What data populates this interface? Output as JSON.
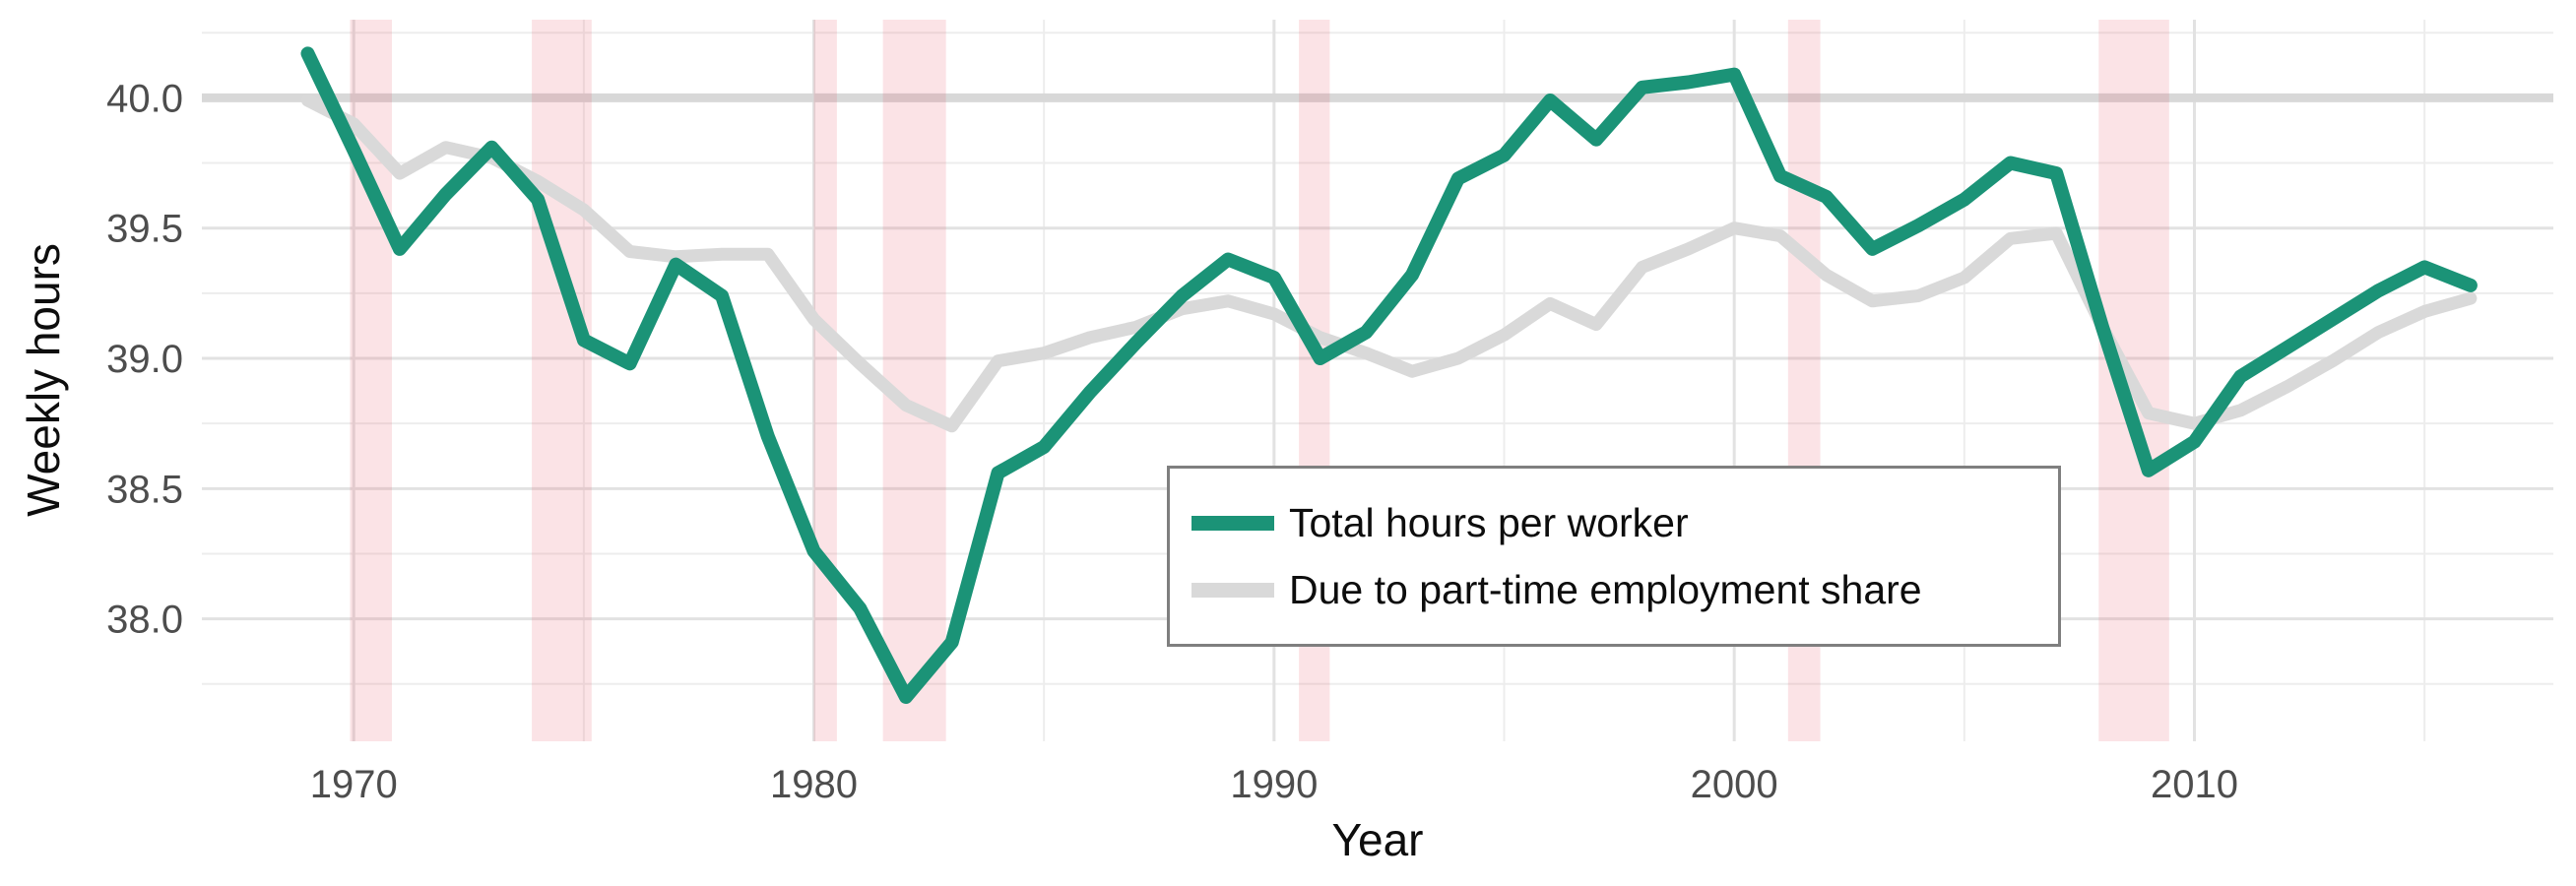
{
  "chart_data": {
    "type": "line",
    "title": "",
    "xlabel": "Year",
    "ylabel": "Weekly hours",
    "grid": "on",
    "background_color": "#ffffff",
    "x_domain": [
      1966.7,
      2017.8
    ],
    "y_domain": [
      37.53,
      40.3
    ],
    "x_ticks": {
      "values": [
        1970,
        1980,
        1990,
        2000,
        2010
      ],
      "labels": [
        "1970",
        "1980",
        "1990",
        "2000",
        "2010"
      ]
    },
    "x_minor_ticks": [
      1975,
      1985,
      1995,
      2005,
      2015
    ],
    "y_ticks": {
      "values": [
        38.0,
        38.5,
        39.0,
        39.5,
        40.0
      ],
      "labels": [
        "38.0",
        "38.5",
        "39.0",
        "39.5",
        "40.0"
      ]
    },
    "y_minor_ticks": [
      37.75,
      38.25,
      38.75,
      39.25,
      39.75,
      40.25
    ],
    "reference_line": {
      "y": 40.0,
      "color": "#d8d8d8"
    },
    "recession_bands": [
      [
        1969.92,
        1970.83
      ],
      [
        1973.87,
        1975.17
      ],
      [
        1980.0,
        1980.5
      ],
      [
        1981.5,
        1982.87
      ],
      [
        1990.54,
        1991.21
      ],
      [
        2001.17,
        2001.87
      ],
      [
        2007.92,
        2009.45
      ]
    ],
    "recession_band_color": "rgba(230,90,105,0.17)",
    "years": [
      1969,
      1970,
      1971,
      1972,
      1973,
      1974,
      1975,
      1976,
      1977,
      1978,
      1979,
      1980,
      1981,
      1982,
      1983,
      1984,
      1985,
      1986,
      1987,
      1988,
      1989,
      1990,
      1991,
      1992,
      1993,
      1994,
      1995,
      1996,
      1997,
      1998,
      1999,
      2000,
      2001,
      2002,
      2003,
      2004,
      2005,
      2006,
      2007,
      2008,
      2009,
      2010,
      2011,
      2012,
      2013,
      2014,
      2015,
      2016
    ],
    "series": [
      {
        "name": "Total hours per worker",
        "color": "#1b9377",
        "stroke_width": 14,
        "values": [
          40.17,
          39.8,
          39.42,
          39.63,
          39.81,
          39.61,
          39.07,
          38.98,
          39.36,
          39.24,
          38.7,
          38.26,
          38.04,
          37.7,
          37.91,
          38.56,
          38.66,
          38.87,
          39.06,
          39.24,
          39.38,
          39.31,
          39.0,
          39.1,
          39.32,
          39.69,
          39.78,
          39.99,
          39.84,
          40.04,
          40.06,
          40.09,
          39.7,
          39.62,
          39.42,
          39.51,
          39.61,
          39.75,
          39.71,
          39.12,
          38.57,
          38.68,
          38.93,
          39.04,
          39.15,
          39.26,
          39.35,
          39.28
        ]
      },
      {
        "name": "Due to part-time employment share",
        "color": "#d9d9d9",
        "stroke_width": 13,
        "values": [
          39.99,
          39.9,
          39.71,
          39.81,
          39.77,
          39.68,
          39.57,
          39.41,
          39.39,
          39.4,
          39.4,
          39.15,
          38.98,
          38.82,
          38.74,
          38.99,
          39.02,
          39.08,
          39.12,
          39.19,
          39.22,
          39.17,
          39.08,
          39.02,
          38.95,
          39.0,
          39.09,
          39.21,
          39.13,
          39.35,
          39.42,
          39.5,
          39.47,
          39.32,
          39.22,
          39.24,
          39.31,
          39.46,
          39.48,
          39.12,
          38.79,
          38.75,
          38.8,
          38.89,
          38.99,
          39.1,
          39.18,
          39.23
        ]
      }
    ],
    "legend_position": "inside-bottom-center",
    "tick_label_color": "#4d4d4d",
    "major_grid_color": "#e2e2e2",
    "minor_grid_color": "#ededed"
  }
}
